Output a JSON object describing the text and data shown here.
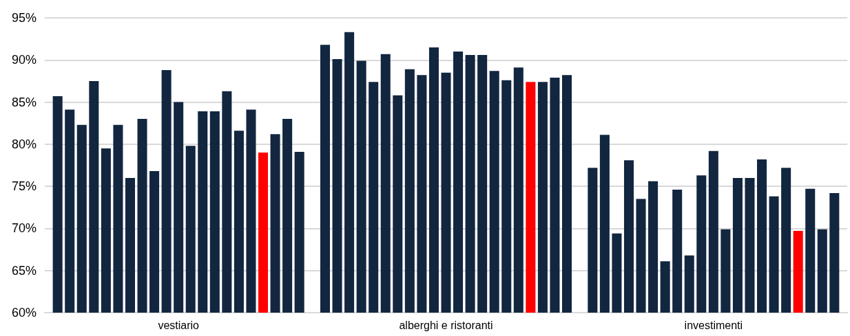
{
  "chart_data": {
    "type": "bar",
    "categories": [
      "vestiario",
      "alberghi e ristoranti",
      "investimenti"
    ],
    "series": [
      {
        "color": "#12263f",
        "values": [
          85.7,
          91.8,
          77.2
        ]
      },
      {
        "color": "#12263f",
        "values": [
          84.1,
          90.1,
          81.1
        ]
      },
      {
        "color": "#12263f",
        "values": [
          82.3,
          93.3,
          69.4
        ]
      },
      {
        "color": "#12263f",
        "values": [
          87.5,
          89.9,
          78.1
        ]
      },
      {
        "color": "#12263f",
        "values": [
          79.5,
          87.4,
          73.5
        ]
      },
      {
        "color": "#12263f",
        "values": [
          82.3,
          90.7,
          75.6
        ]
      },
      {
        "color": "#12263f",
        "values": [
          76.0,
          85.8,
          66.1
        ]
      },
      {
        "color": "#12263f",
        "values": [
          83.0,
          88.9,
          74.6
        ]
      },
      {
        "color": "#12263f",
        "values": [
          76.8,
          88.2,
          66.8
        ]
      },
      {
        "color": "#12263f",
        "values": [
          88.8,
          91.5,
          76.3
        ]
      },
      {
        "color": "#12263f",
        "values": [
          85.0,
          88.5,
          79.2
        ]
      },
      {
        "color": "#12263f",
        "values": [
          79.8,
          91.0,
          69.9
        ]
      },
      {
        "color": "#12263f",
        "values": [
          83.9,
          90.6,
          76.0
        ]
      },
      {
        "color": "#12263f",
        "values": [
          83.9,
          90.6,
          76.0
        ]
      },
      {
        "color": "#12263f",
        "values": [
          86.3,
          88.7,
          78.2
        ]
      },
      {
        "color": "#12263f",
        "values": [
          81.6,
          87.6,
          73.8
        ]
      },
      {
        "color": "#12263f",
        "values": [
          84.1,
          89.1,
          77.2
        ]
      },
      {
        "color": "#ff0000",
        "values": [
          79.0,
          87.4,
          69.7
        ]
      },
      {
        "color": "#12263f",
        "values": [
          81.2,
          87.4,
          74.7
        ]
      },
      {
        "color": "#12263f",
        "values": [
          83.0,
          87.9,
          69.9
        ]
      },
      {
        "color": "#12263f",
        "values": [
          79.1,
          88.2,
          74.2
        ]
      }
    ],
    "ylim": [
      60,
      95
    ],
    "yticks": [
      {
        "value": 60,
        "label": "60%"
      },
      {
        "value": 65,
        "label": "65%"
      },
      {
        "value": 70,
        "label": "70%"
      },
      {
        "value": 75,
        "label": "75%"
      },
      {
        "value": 80,
        "label": "80%"
      },
      {
        "value": 85,
        "label": "85%"
      },
      {
        "value": 90,
        "label": "90%"
      },
      {
        "value": 95,
        "label": "95%"
      }
    ],
    "grid": "y",
    "legend": false
  }
}
